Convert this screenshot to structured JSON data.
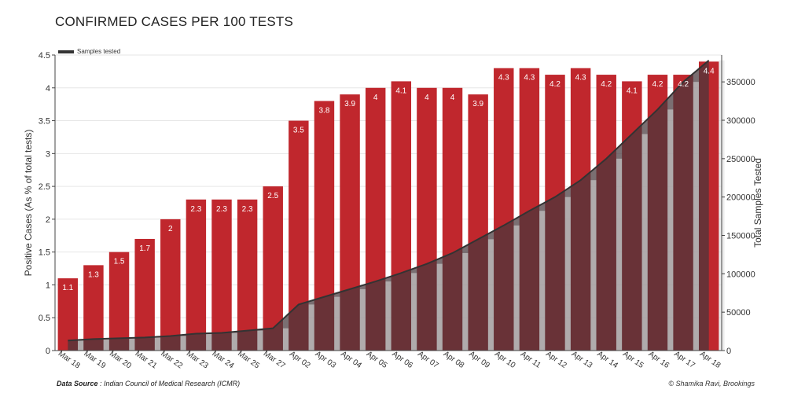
{
  "chart_data": {
    "type": "bar",
    "title": "CONFIRMED CASES PER 100 TESTS",
    "legend": {
      "label": "Samples tested",
      "placement": "top-left"
    },
    "categories": [
      "Mar 18",
      "Mar 19",
      "Mar 20",
      "Mar 21",
      "Mar 22",
      "Mar 23",
      "Mar 24",
      "Mar 25",
      "Mar 27",
      "Apr 02",
      "Apr 03",
      "Apr 04",
      "Apr 05",
      "Apr 06",
      "Apr 07",
      "Apr 08",
      "Apr 09",
      "Apr 10",
      "Apr 11",
      "Apr 12",
      "Apr 13",
      "Apr 14",
      "Apr 15",
      "Apr 16",
      "Apr 17",
      "Apr 18"
    ],
    "series": [
      {
        "name": "Positive Cases (As % of total tests)",
        "type": "bar",
        "axis": "left",
        "color": "#c0272d",
        "values": [
          1.1,
          1.3,
          1.5,
          1.7,
          2,
          2.3,
          2.3,
          2.3,
          2.5,
          3.5,
          3.8,
          3.9,
          4,
          4.1,
          4,
          4,
          3.9,
          4.3,
          4.3,
          4.2,
          4.3,
          4.2,
          4.1,
          4.2,
          4.2,
          4.4
        ],
        "labels": [
          "1.1",
          "1.3",
          "1.5",
          "1.7",
          "2",
          "2.3",
          "2.3",
          "2.3",
          "2.5",
          "3.5",
          "3.8",
          "3.9",
          "4",
          "4.1",
          "4",
          "4",
          "3.9",
          "4.3",
          "4.3",
          "4.2",
          "4.3",
          "4.2",
          "4.1",
          "4.2",
          "4.2",
          "4.4"
        ]
      },
      {
        "name": "Samples tested",
        "type": "area",
        "axis": "right",
        "color": "#333333",
        "values": [
          13000,
          15000,
          16000,
          17000,
          19000,
          22000,
          23000,
          26000,
          29000,
          60000,
          70000,
          80000,
          90000,
          101000,
          113000,
          127000,
          145000,
          163000,
          182000,
          200000,
          222000,
          250000,
          282000,
          314000,
          350000,
          378000
        ]
      }
    ],
    "ylabel": "Positive Cases (As % of total tests)",
    "ylim": [
      0,
      4.5
    ],
    "yticks": [
      "0",
      "0.5",
      "1",
      "1.5",
      "2",
      "2.5",
      "3",
      "3.5",
      "4",
      "4.5"
    ],
    "y2label": "Total Samples Tested",
    "y2lim": [
      0,
      385000
    ],
    "y2ticks": [
      "0",
      "50000",
      "100000",
      "150000",
      "200000",
      "250000",
      "300000",
      "350000"
    ],
    "grid": true
  },
  "footer": {
    "source_label": "Data Source",
    "source_text": " : Indian Council of Medical Research (ICMR)",
    "credit": "© Shamika Ravi, Brookings"
  },
  "colors": {
    "bar": "#c0272d",
    "area_fill": "#5a2f33",
    "line": "#333333"
  }
}
